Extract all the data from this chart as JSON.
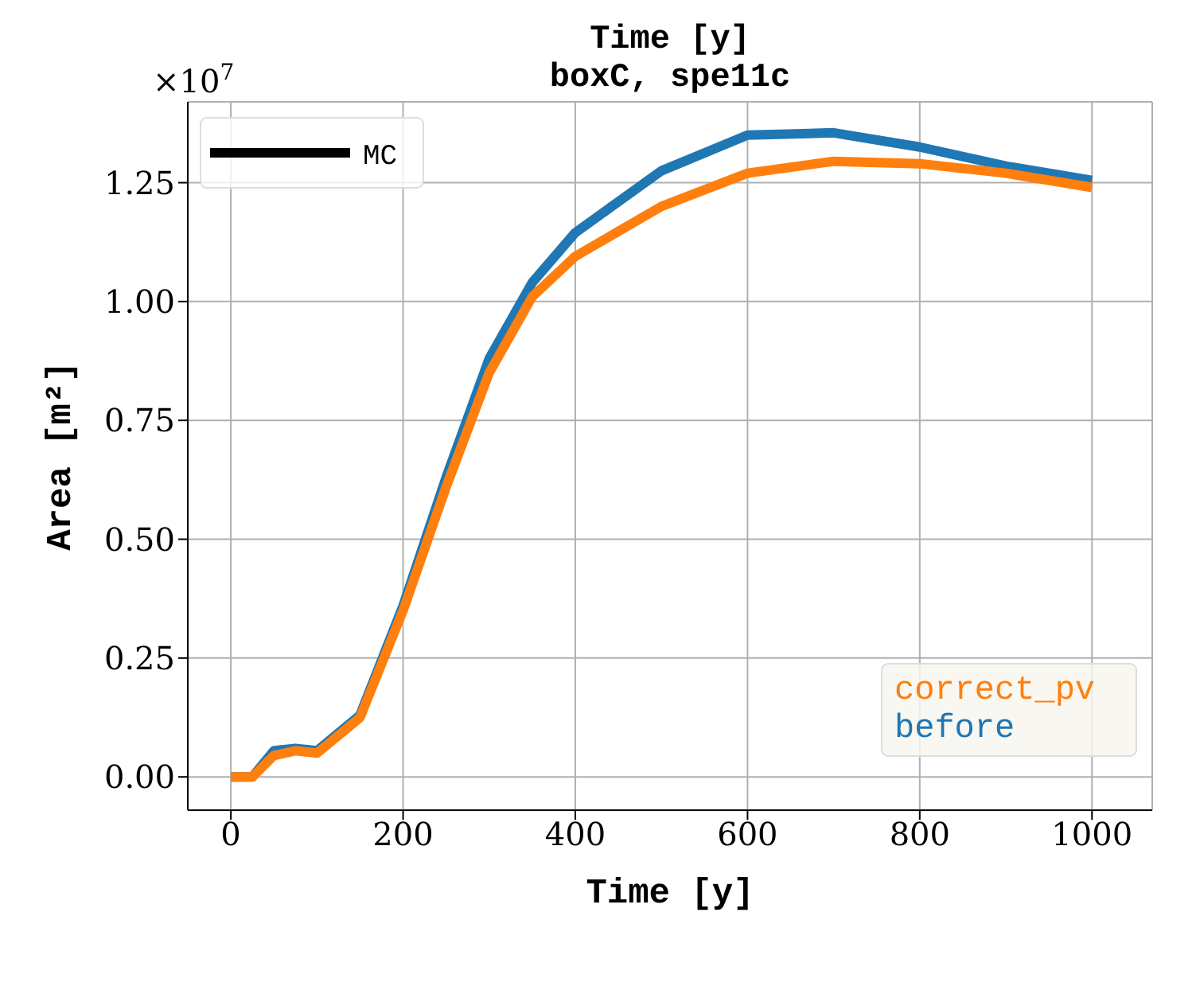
{
  "chart_data": {
    "type": "line",
    "title": "Time [y]",
    "subtitle": "boxC, spe11c",
    "xlabel": "Time [y]",
    "ylabel": "Area [m²]",
    "annotations": [
      "×10$^{7}$",
      "MC"
    ],
    "x": [
      0,
      25,
      50,
      75,
      100,
      150,
      200,
      250,
      300,
      350,
      400,
      500,
      600,
      700,
      800,
      900,
      1000
    ],
    "series": [
      {
        "name": "before",
        "color": "#1f77b4",
        "values": [
          0,
          0,
          0.055,
          0.06,
          0.055,
          0.13,
          0.36,
          0.63,
          0.88,
          1.04,
          1.145,
          1.275,
          1.35,
          1.355,
          1.325,
          1.285,
          1.255
        ]
      },
      {
        "name": "correct_pv",
        "color": "#ff7f0e",
        "values": [
          0,
          0,
          0.045,
          0.055,
          0.05,
          0.125,
          0.35,
          0.61,
          0.85,
          1.01,
          1.095,
          1.2,
          1.27,
          1.295,
          1.29,
          1.27,
          1.24
        ]
      }
    ],
    "xlim": [
      -50,
      1070
    ],
    "ylim": [
      -0.07,
      1.42
    ],
    "xticks": [
      0,
      200,
      400,
      600,
      800,
      1000
    ],
    "yticks": [
      {
        "value": 0,
        "label": "0.00"
      },
      0.25,
      {
        "value": 0.5,
        "label": "0.50"
      },
      0.75,
      {
        "value": 1,
        "label": "1.00"
      },
      1.25
    ],
    "grid": true,
    "line_style": "solid",
    "marker": "none"
  }
}
